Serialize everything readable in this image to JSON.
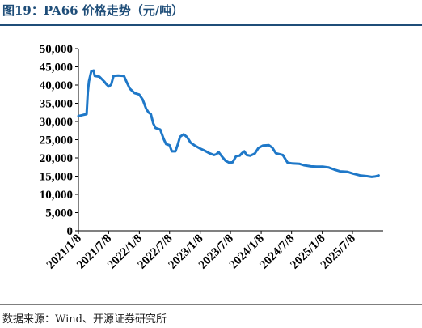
{
  "title": "图19：PA66 价格走势（元/吨）",
  "source": "数据来源：Wind、开源证券研究所",
  "chart_data": {
    "type": "line",
    "title": "PA66 价格走势（元/吨）",
    "xlabel": "",
    "ylabel": "",
    "ylim": [
      0,
      50000
    ],
    "y_ticks": [
      0,
      5000,
      10000,
      15000,
      20000,
      25000,
      30000,
      35000,
      40000,
      45000,
      50000
    ],
    "y_tick_labels": [
      "0",
      "5,000",
      "10,000",
      "15,000",
      "20,000",
      "25,000",
      "30,000",
      "35,000",
      "40,000",
      "45,000",
      "50,000"
    ],
    "x_tick_labels": [
      "2021/1/8",
      "2021/7/8",
      "2022/1/8",
      "2022/7/8",
      "2023/1/8",
      "2023/7/8",
      "2024/1/8",
      "2024/7/8",
      "2025/1/8",
      "2025/7/8"
    ],
    "x_tick_dates": [
      "2021-01-08",
      "2021-07-08",
      "2022-01-08",
      "2022-07-08",
      "2023-01-08",
      "2023-07-08",
      "2024-01-08",
      "2024-07-08",
      "2025-01-08",
      "2025-07-08"
    ],
    "xlim": [
      "2021-01-08",
      "2026-01-08"
    ],
    "line_color": "#1f78c8",
    "grid": false,
    "series": [
      {
        "values": [
          [
            "2021-01-08",
            31500
          ],
          [
            "2021-02-05",
            31800
          ],
          [
            "2021-02-26",
            32000
          ],
          [
            "2021-03-05",
            38000
          ],
          [
            "2021-03-12",
            41000
          ],
          [
            "2021-03-26",
            43800
          ],
          [
            "2021-04-09",
            44000
          ],
          [
            "2021-04-16",
            42500
          ],
          [
            "2021-05-14",
            42300
          ],
          [
            "2021-06-11",
            41000
          ],
          [
            "2021-06-25",
            40200
          ],
          [
            "2021-07-09",
            39600
          ],
          [
            "2021-07-23",
            40100
          ],
          [
            "2021-08-06",
            42500
          ],
          [
            "2021-09-03",
            42600
          ],
          [
            "2021-10-08",
            42500
          ],
          [
            "2021-10-22",
            41000
          ],
          [
            "2021-11-12",
            39000
          ],
          [
            "2021-12-10",
            37800
          ],
          [
            "2022-01-07",
            37400
          ],
          [
            "2022-01-28",
            36000
          ],
          [
            "2022-02-18",
            33500
          ],
          [
            "2022-03-04",
            32500
          ],
          [
            "2022-03-18",
            32000
          ],
          [
            "2022-04-01",
            29500
          ],
          [
            "2022-04-15",
            28200
          ],
          [
            "2022-05-13",
            27800
          ],
          [
            "2022-06-03",
            25200
          ],
          [
            "2022-06-17",
            23800
          ],
          [
            "2022-07-08",
            23500
          ],
          [
            "2022-07-22",
            21800
          ],
          [
            "2022-08-12",
            21800
          ],
          [
            "2022-08-26",
            23600
          ],
          [
            "2022-09-09",
            25800
          ],
          [
            "2022-09-30",
            26500
          ],
          [
            "2022-10-21",
            25700
          ],
          [
            "2022-11-11",
            24200
          ],
          [
            "2022-12-09",
            23300
          ],
          [
            "2023-01-06",
            22600
          ],
          [
            "2023-02-03",
            22000
          ],
          [
            "2023-03-03",
            21300
          ],
          [
            "2023-03-31",
            20800
          ],
          [
            "2023-04-14",
            21000
          ],
          [
            "2023-04-28",
            21600
          ],
          [
            "2023-05-19",
            20300
          ],
          [
            "2023-06-09",
            19200
          ],
          [
            "2023-06-30",
            18700
          ],
          [
            "2023-07-21",
            18800
          ],
          [
            "2023-08-11",
            20500
          ],
          [
            "2023-09-01",
            20600
          ],
          [
            "2023-09-15",
            21300
          ],
          [
            "2023-09-29",
            21800
          ],
          [
            "2023-10-13",
            20800
          ],
          [
            "2023-11-03",
            20600
          ],
          [
            "2023-12-01",
            21200
          ],
          [
            "2023-12-22",
            22700
          ],
          [
            "2024-01-19",
            23400
          ],
          [
            "2024-02-23",
            23500
          ],
          [
            "2024-03-15",
            22800
          ],
          [
            "2024-04-05",
            21300
          ],
          [
            "2024-05-17",
            20800
          ],
          [
            "2024-06-14",
            18700
          ],
          [
            "2024-07-12",
            18500
          ],
          [
            "2024-08-23",
            18400
          ],
          [
            "2024-09-20",
            18000
          ],
          [
            "2024-11-01",
            17700
          ],
          [
            "2024-12-06",
            17600
          ],
          [
            "2025-01-10",
            17600
          ],
          [
            "2025-02-14",
            17400
          ],
          [
            "2025-03-21",
            16800
          ],
          [
            "2025-04-25",
            16300
          ],
          [
            "2025-06-06",
            16200
          ],
          [
            "2025-07-11",
            15700
          ],
          [
            "2025-08-22",
            15200
          ],
          [
            "2025-10-03",
            15000
          ],
          [
            "2025-10-31",
            14800
          ],
          [
            "2025-11-21",
            14900
          ],
          [
            "2025-12-12",
            15200
          ]
        ]
      }
    ]
  }
}
